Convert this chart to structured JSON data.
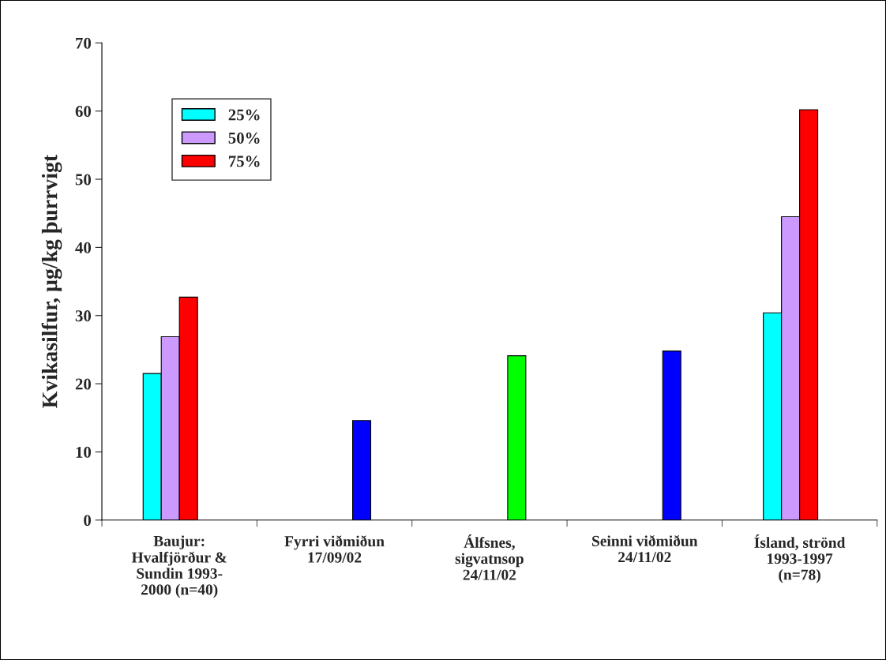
{
  "chart_data": {
    "type": "bar",
    "ylabel": "Kvikasilfur, µg/kg þurrvigt",
    "categories": [
      "Baujur:\nHvalfjörður &\nSundin 1993-\n2000 (n=40)",
      "Fyrri viðmiðun\n17/09/02",
      "Álfsnes,\nsigvatnsop\n24/11/02",
      "Seinni viðmiðun\n24/11/02",
      "Ísland, strönd\n1993-1997\n(n=78)"
    ],
    "series": [
      {
        "name": "25%",
        "color": "#00ffff",
        "values": [
          21.5,
          null,
          null,
          null,
          30.4
        ]
      },
      {
        "name": "50%",
        "color": "#cc99ff",
        "values": [
          26.9,
          null,
          null,
          null,
          44.5
        ]
      },
      {
        "name": "75%",
        "color": "#ff0000",
        "values": [
          32.7,
          null,
          null,
          null,
          60.2
        ]
      },
      {
        "colors": [
          "#0000ff",
          "#0000ff",
          "#00ff00",
          "#0000ff",
          "#0000ff"
        ],
        "values": [
          null,
          14.6,
          24.1,
          24.8,
          null
        ]
      }
    ],
    "ylim": [
      0,
      70
    ],
    "yticks": [
      0,
      10,
      20,
      30,
      40,
      50,
      60,
      70
    ],
    "grid": false,
    "legend": "top left"
  }
}
